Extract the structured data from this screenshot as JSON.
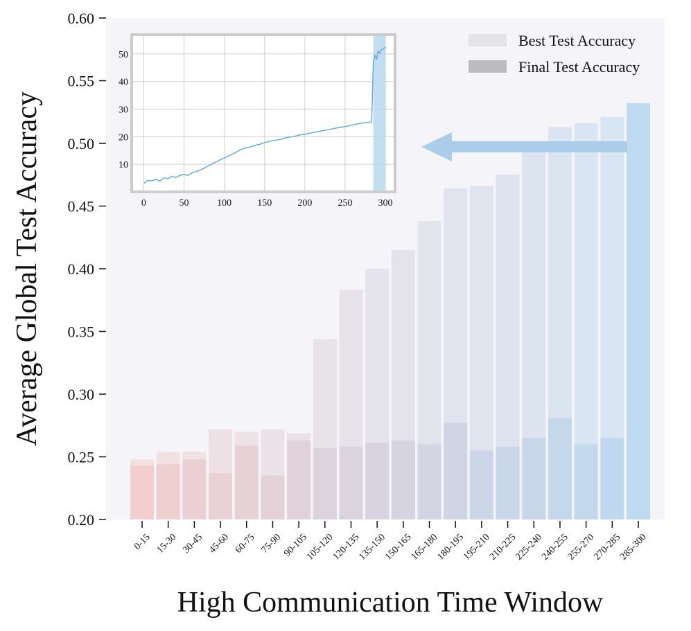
{
  "chart_data": {
    "type": "bar",
    "xlabel": "High Communication Time Window",
    "ylabel": "Average Global Test Accuracy",
    "ylim": [
      0.2,
      0.6
    ],
    "yticks": [
      "0.20",
      "0.25",
      "0.30",
      "0.35",
      "0.40",
      "0.45",
      "0.50",
      "0.55",
      "0.60"
    ],
    "categories": [
      "0-15",
      "15-30",
      "30-45",
      "45-60",
      "60-75",
      "75-90",
      "90-105",
      "105-120",
      "120-135",
      "135-150",
      "150-165",
      "165-180",
      "180-195",
      "195-210",
      "210-225",
      "225-240",
      "240-255",
      "255-270",
      "270-285",
      "285-300"
    ],
    "legend_position": "top-right",
    "series": [
      {
        "name": "Best Test Accuracy",
        "color": "#e4e4e6",
        "values": [
          0.248,
          0.254,
          0.254,
          0.272,
          0.27,
          0.272,
          0.269,
          0.344,
          0.383,
          0.4,
          0.415,
          0.438,
          0.464,
          0.466,
          0.475,
          0.499,
          0.513,
          0.516,
          0.521,
          0.532
        ]
      },
      {
        "name": "Final Test Accuracy",
        "color": "#bcbcbe",
        "values": [
          0.243,
          0.244,
          0.248,
          0.237,
          0.259,
          0.235,
          0.263,
          0.257,
          0.258,
          0.261,
          0.263,
          0.26,
          0.277,
          0.255,
          0.258,
          0.265,
          0.281,
          0.26,
          0.265,
          0.532
        ]
      }
    ],
    "bar_gradient": {
      "start": "#f0c4c4",
      "end": "#acd1ee"
    },
    "inset": {
      "type": "line",
      "xlim": [
        -15,
        312
      ],
      "ylim": [
        0,
        57
      ],
      "xticks": [
        "0",
        "50",
        "100",
        "150",
        "200",
        "250",
        "300"
      ],
      "yticks": [
        "10",
        "20",
        "30",
        "40",
        "50"
      ],
      "grid": true,
      "line_color": "#5aa8dc",
      "highlight": {
        "x": [
          285,
          300
        ],
        "color": "#b9d7ee"
      },
      "points": [
        [
          0,
          3.0
        ],
        [
          5,
          4.2
        ],
        [
          10,
          4.0
        ],
        [
          15,
          4.6
        ],
        [
          20,
          3.9
        ],
        [
          25,
          5.1
        ],
        [
          30,
          4.8
        ],
        [
          35,
          5.6
        ],
        [
          40,
          5.2
        ],
        [
          45,
          6.0
        ],
        [
          50,
          6.3
        ],
        [
          55,
          6.0
        ],
        [
          60,
          6.9
        ],
        [
          65,
          7.3
        ],
        [
          70,
          7.9
        ],
        [
          75,
          8.6
        ],
        [
          80,
          9.4
        ],
        [
          85,
          10.2
        ],
        [
          90,
          10.9
        ],
        [
          95,
          11.6
        ],
        [
          100,
          12.3
        ],
        [
          105,
          12.9
        ],
        [
          110,
          13.7
        ],
        [
          115,
          14.4
        ],
        [
          120,
          15.3
        ],
        [
          125,
          15.8
        ],
        [
          130,
          16.1
        ],
        [
          135,
          16.6
        ],
        [
          140,
          17.0
        ],
        [
          145,
          17.3
        ],
        [
          150,
          17.9
        ],
        [
          155,
          18.2
        ],
        [
          160,
          18.6
        ],
        [
          165,
          18.8
        ],
        [
          170,
          19.1
        ],
        [
          175,
          19.5
        ],
        [
          180,
          19.8
        ],
        [
          185,
          20.0
        ],
        [
          190,
          20.4
        ],
        [
          195,
          20.7
        ],
        [
          200,
          20.9
        ],
        [
          205,
          21.2
        ],
        [
          210,
          21.5
        ],
        [
          215,
          21.8
        ],
        [
          220,
          22.1
        ],
        [
          225,
          22.3
        ],
        [
          230,
          22.6
        ],
        [
          235,
          22.9
        ],
        [
          240,
          23.2
        ],
        [
          245,
          23.4
        ],
        [
          250,
          23.7
        ],
        [
          255,
          24.0
        ],
        [
          260,
          24.3
        ],
        [
          265,
          24.6
        ],
        [
          270,
          24.9
        ],
        [
          275,
          25.1
        ],
        [
          280,
          25.2
        ],
        [
          283,
          25.4
        ],
        [
          285,
          47.0
        ],
        [
          287,
          49.5
        ],
        [
          289,
          48.2
        ],
        [
          291,
          51.0
        ],
        [
          293,
          50.3
        ],
        [
          295,
          51.5
        ],
        [
          297,
          51.8
        ],
        [
          300,
          52.5
        ]
      ]
    }
  }
}
